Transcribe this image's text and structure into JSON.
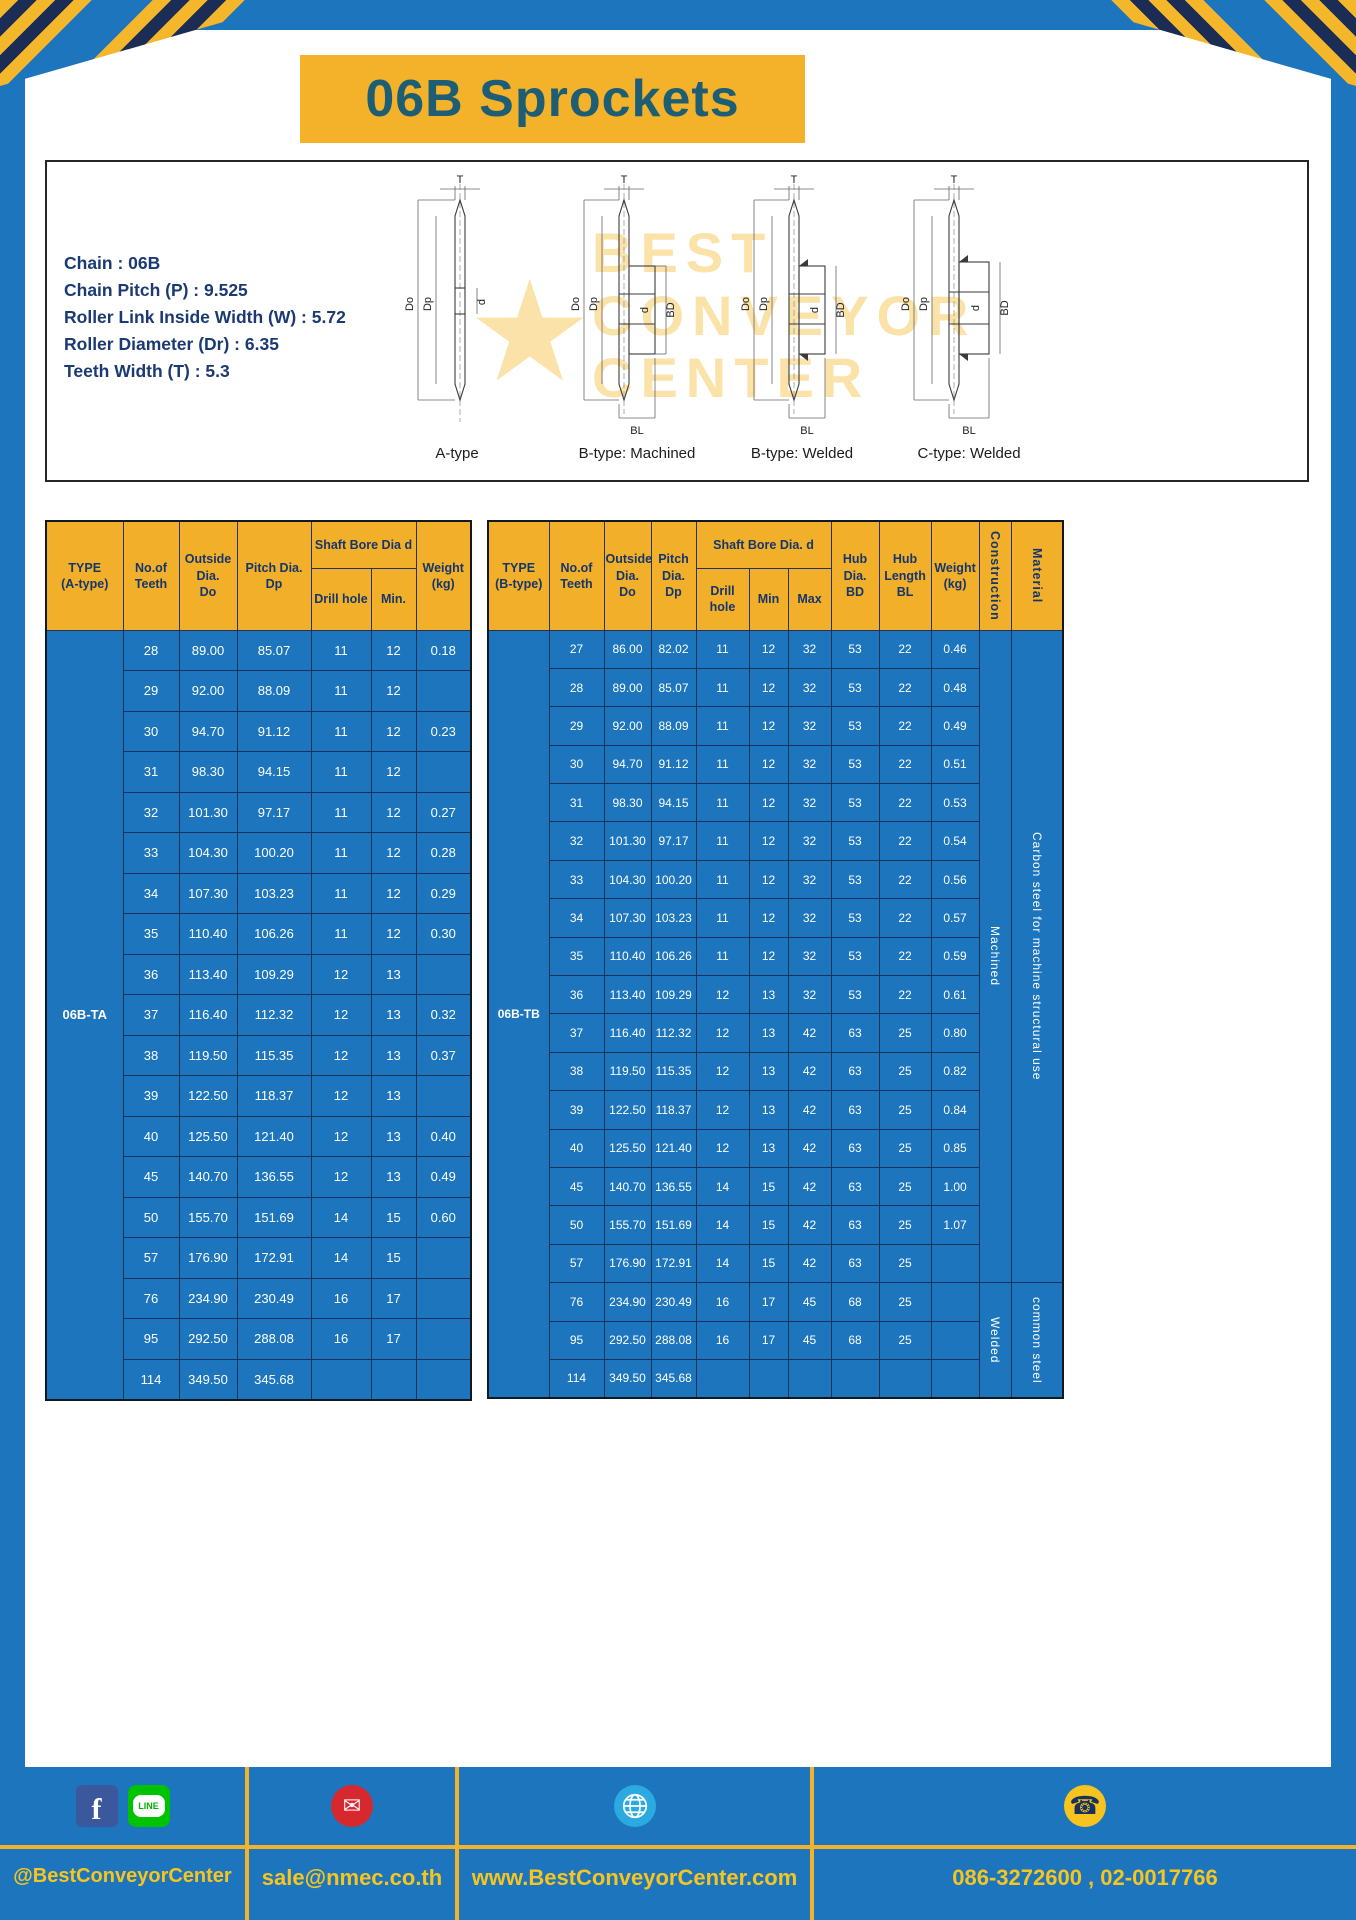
{
  "title": "06B Sprockets",
  "spec": {
    "lines": [
      "Chain : 06B",
      "Chain Pitch (P) : 9.525",
      "Roller Link Inside Width (W) : 5.72",
      "Roller Diameter (Dr) : 6.35",
      "Teeth Width (T) : 5.3"
    ]
  },
  "watermark": {
    "star": "★",
    "lines": [
      "BEST",
      "CONVEYOR",
      "CENTER"
    ]
  },
  "diagrams": [
    {
      "caption": "A-type",
      "dims": {
        "t": "T",
        "outer": "Do",
        "pitch": "Dp",
        "bore": "d"
      }
    },
    {
      "caption": "B-type: Machined",
      "dims": {
        "t": "T",
        "outer": "Do",
        "pitch": "Dp",
        "bore": "d",
        "hub_d": "BD",
        "hub_l": "BL"
      }
    },
    {
      "caption": "B-type: Welded",
      "dims": {
        "t": "T",
        "outer": "Do",
        "pitch": "Dp",
        "bore": "d",
        "hub_d": "BD",
        "hub_l": "BL"
      }
    },
    {
      "caption": "C-type: Welded",
      "dims": {
        "t": "T",
        "outer": "Do",
        "pitch": "Dp",
        "bore": "d",
        "hub_d": "BD",
        "hub_l": "BL"
      }
    }
  ],
  "table_a": {
    "headers": {
      "type": "TYPE\n(A-type)",
      "teeth": "No.of\nTeeth",
      "outside": "Outside\nDia.\nDo",
      "pitch": "Pitch Dia.\nDp",
      "shaft_group": "Shaft Bore Dia d",
      "drill": "Drill hole",
      "min": "Min.",
      "weight": "Weight\n(kg)"
    },
    "type_value": "06B-TA",
    "rows": [
      [
        "28",
        "89.00",
        "85.07",
        "11",
        "12",
        "0.18"
      ],
      [
        "29",
        "92.00",
        "88.09",
        "11",
        "12",
        ""
      ],
      [
        "30",
        "94.70",
        "91.12",
        "11",
        "12",
        "0.23"
      ],
      [
        "31",
        "98.30",
        "94.15",
        "11",
        "12",
        ""
      ],
      [
        "32",
        "101.30",
        "97.17",
        "11",
        "12",
        "0.27"
      ],
      [
        "33",
        "104.30",
        "100.20",
        "11",
        "12",
        "0.28"
      ],
      [
        "34",
        "107.30",
        "103.23",
        "11",
        "12",
        "0.29"
      ],
      [
        "35",
        "110.40",
        "106.26",
        "11",
        "12",
        "0.30"
      ],
      [
        "36",
        "113.40",
        "109.29",
        "12",
        "13",
        ""
      ],
      [
        "37",
        "116.40",
        "112.32",
        "12",
        "13",
        "0.32"
      ],
      [
        "38",
        "119.50",
        "115.35",
        "12",
        "13",
        "0.37"
      ],
      [
        "39",
        "122.50",
        "118.37",
        "12",
        "13",
        ""
      ],
      [
        "40",
        "125.50",
        "121.40",
        "12",
        "13",
        "0.40"
      ],
      [
        "45",
        "140.70",
        "136.55",
        "12",
        "13",
        "0.49"
      ],
      [
        "50",
        "155.70",
        "151.69",
        "14",
        "15",
        "0.60"
      ],
      [
        "57",
        "176.90",
        "172.91",
        "14",
        "15",
        ""
      ],
      [
        "76",
        "234.90",
        "230.49",
        "16",
        "17",
        ""
      ],
      [
        "95",
        "292.50",
        "288.08",
        "16",
        "17",
        ""
      ],
      [
        "114",
        "349.50",
        "345.68",
        "",
        "",
        ""
      ]
    ]
  },
  "table_b": {
    "headers": {
      "type": "TYPE\n(B-type)",
      "teeth": "No.of\nTeeth",
      "outside": "Outside\nDia.\nDo",
      "pitch": "Pitch\nDia.\nDp",
      "shaft_group": "Shaft Bore Dia. d",
      "drill": "Drill hole",
      "min": "Min",
      "max": "Max",
      "hub_dia": "Hub\nDia.\nBD",
      "hub_len": "Hub\nLength\nBL",
      "weight": "Weight\n(kg)",
      "construction": "Construction",
      "material": "Material"
    },
    "type_value": "06B-TB",
    "rows": [
      [
        "27",
        "86.00",
        "82.02",
        "11",
        "12",
        "32",
        "53",
        "22",
        "0.46"
      ],
      [
        "28",
        "89.00",
        "85.07",
        "11",
        "12",
        "32",
        "53",
        "22",
        "0.48"
      ],
      [
        "29",
        "92.00",
        "88.09",
        "11",
        "12",
        "32",
        "53",
        "22",
        "0.49"
      ],
      [
        "30",
        "94.70",
        "91.12",
        "11",
        "12",
        "32",
        "53",
        "22",
        "0.51"
      ],
      [
        "31",
        "98.30",
        "94.15",
        "11",
        "12",
        "32",
        "53",
        "22",
        "0.53"
      ],
      [
        "32",
        "101.30",
        "97.17",
        "11",
        "12",
        "32",
        "53",
        "22",
        "0.54"
      ],
      [
        "33",
        "104.30",
        "100.20",
        "11",
        "12",
        "32",
        "53",
        "22",
        "0.56"
      ],
      [
        "34",
        "107.30",
        "103.23",
        "11",
        "12",
        "32",
        "53",
        "22",
        "0.57"
      ],
      [
        "35",
        "110.40",
        "106.26",
        "11",
        "12",
        "32",
        "53",
        "22",
        "0.59"
      ],
      [
        "36",
        "113.40",
        "109.29",
        "12",
        "13",
        "32",
        "53",
        "22",
        "0.61"
      ],
      [
        "37",
        "116.40",
        "112.32",
        "12",
        "13",
        "42",
        "63",
        "25",
        "0.80"
      ],
      [
        "38",
        "119.50",
        "115.35",
        "12",
        "13",
        "42",
        "63",
        "25",
        "0.82"
      ],
      [
        "39",
        "122.50",
        "118.37",
        "12",
        "13",
        "42",
        "63",
        "25",
        "0.84"
      ],
      [
        "40",
        "125.50",
        "121.40",
        "12",
        "13",
        "42",
        "63",
        "25",
        "0.85"
      ],
      [
        "45",
        "140.70",
        "136.55",
        "14",
        "15",
        "42",
        "63",
        "25",
        "1.00"
      ],
      [
        "50",
        "155.70",
        "151.69",
        "14",
        "15",
        "42",
        "63",
        "25",
        "1.07"
      ],
      [
        "57",
        "176.90",
        "172.91",
        "14",
        "15",
        "42",
        "63",
        "25",
        ""
      ],
      [
        "76",
        "234.90",
        "230.49",
        "16",
        "17",
        "45",
        "68",
        "25",
        ""
      ],
      [
        "95",
        "292.50",
        "288.08",
        "16",
        "17",
        "45",
        "68",
        "25",
        ""
      ],
      [
        "114",
        "349.50",
        "345.68",
        "",
        "",
        "",
        "",
        "",
        ""
      ]
    ],
    "spans": [
      {
        "start": 0,
        "rows": 17,
        "cols": [
          {
            "label": "Machined",
            "name": "construction-cell"
          },
          {
            "label": "Carbon steel for machine structural use",
            "name": "material-cell"
          }
        ]
      },
      {
        "start": 17,
        "rows": 3,
        "cols": [
          {
            "label": "Welded",
            "name": "construction-cell"
          },
          {
            "label": "common steel",
            "name": "material-cell"
          }
        ]
      }
    ]
  },
  "footer": {
    "icon_glyphs": {
      "facebook": "f",
      "line": "LINE",
      "email": "✉",
      "phone": "☎"
    },
    "sections": [
      {
        "text": "@BestConveyorCenter"
      },
      {
        "text": "sale@nmec.co.th"
      },
      {
        "text": "www.BestConveyorCenter.com"
      },
      {
        "text": "086-3272600 , 02-0017766"
      }
    ]
  }
}
